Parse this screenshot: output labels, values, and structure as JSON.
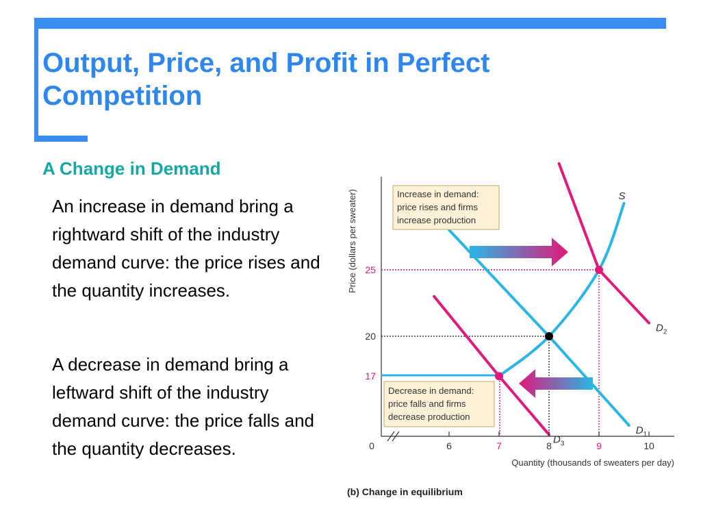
{
  "slide": {
    "title": "Output, Price, and Profit in Perfect Competition",
    "subheading": "A Change in Demand",
    "paragraphs": [
      "An increase in demand bring a rightward shift of the industry demand curve: the price rises and the quantity increases.",
      "A decrease in demand bring a leftward shift of the industry demand curve: the price falls and the quantity decreases."
    ]
  },
  "colors": {
    "accent": "#3a8ef2",
    "title": "#2f86ef",
    "subheading": "#15a6a6",
    "supply": "#29b6e6",
    "d1": "#29b6e6",
    "d2": "#e0197a",
    "d3": "#e0197a",
    "callout_bg": "#fdf2d8",
    "callout_border": "#c9b483"
  },
  "chart_data": {
    "type": "line",
    "caption": "(b) Change in equilibrium",
    "xlabel": "Quantity (thousands of sweaters per day)",
    "ylabel": "Price (dollars per sweater)",
    "x_ticks": [
      "6",
      "7",
      "8",
      "9",
      "10"
    ],
    "y_ticks": [
      "17",
      "20",
      "25"
    ],
    "origin_label": "0",
    "series": [
      {
        "name": "S",
        "points": [
          [
            7,
            17
          ],
          [
            8,
            20
          ],
          [
            9,
            25
          ],
          [
            9.5,
            30
          ]
        ]
      },
      {
        "name": "D",
        "sub": "1",
        "points": [
          [
            6,
            28
          ],
          [
            8,
            20
          ],
          [
            9.6,
            13.3
          ]
        ]
      },
      {
        "name": "D",
        "sub": "2",
        "points": [
          [
            8.2,
            33
          ],
          [
            9,
            25
          ],
          [
            10,
            21
          ]
        ]
      },
      {
        "name": "D",
        "sub": "3",
        "points": [
          [
            5.7,
            23
          ],
          [
            7,
            17
          ],
          [
            8,
            12.6
          ]
        ]
      }
    ],
    "equilibria": [
      {
        "x": 8,
        "y": 20,
        "style": "original"
      },
      {
        "x": 9,
        "y": 25,
        "style": "increase"
      },
      {
        "x": 7,
        "y": 17,
        "style": "decrease"
      }
    ],
    "annotations": [
      "Increase in demand: price rises and firms increase production",
      "Decrease in demand: price falls and firms decrease production"
    ]
  }
}
